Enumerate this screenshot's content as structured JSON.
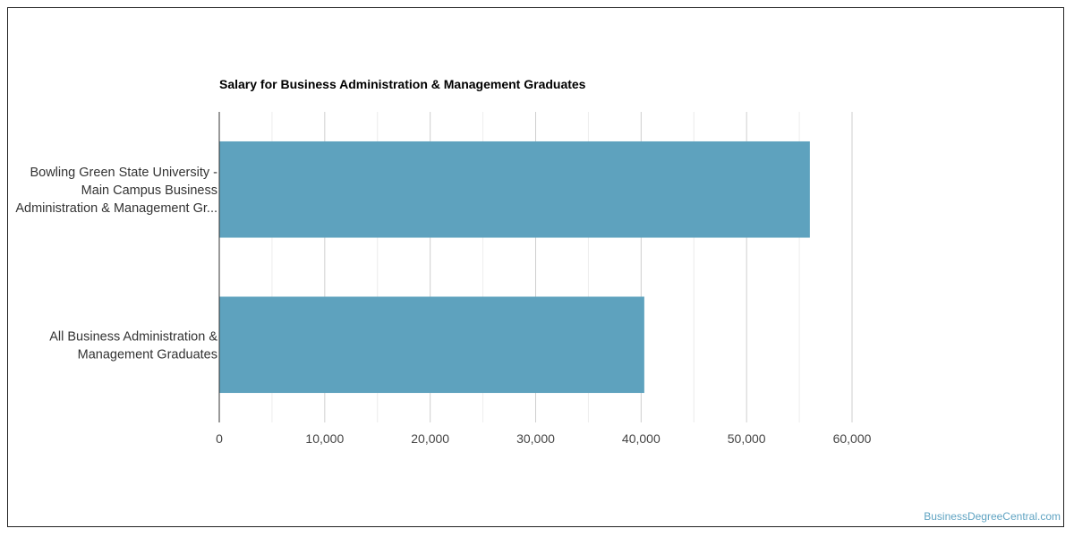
{
  "chart_data": {
    "type": "bar",
    "orientation": "horizontal",
    "title": "Salary for Business Administration & Management Graduates",
    "categories": [
      [
        "Bowling Green State University -",
        "Main Campus Business",
        "Administration & Management Gr..."
      ],
      [
        "All Business Administration &",
        "Management Graduates"
      ]
    ],
    "values": [
      56000,
      40300
    ],
    "xlim": [
      0,
      60000
    ],
    "xticks": [
      "0",
      "10,000",
      "20,000",
      "30,000",
      "40,000",
      "50,000",
      "60,000"
    ],
    "xtick_values": [
      0,
      10000,
      20000,
      30000,
      40000,
      50000,
      60000
    ],
    "grid": true,
    "bar_color": "#5ea2be"
  },
  "watermark": "BusinessDegreeCentral.com"
}
